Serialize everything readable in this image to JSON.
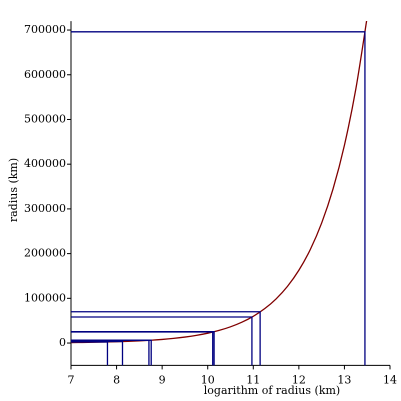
{
  "chart_data": {
    "type": "line",
    "xlabel": "logarithm of radius (km)",
    "ylabel": "radius (km)",
    "xlim": [
      7,
      14
    ],
    "ylim": [
      -50000,
      720000
    ],
    "xticks": [
      7,
      8,
      9,
      10,
      11,
      12,
      13,
      14
    ],
    "yticks": [
      0,
      100000,
      200000,
      300000,
      400000,
      500000,
      600000,
      700000
    ],
    "series": [
      {
        "color": "#800000",
        "x": [
          7,
          7.25,
          7.5,
          7.75,
          8,
          8.25,
          8.5,
          8.75,
          9,
          9.25,
          9.5,
          9.75,
          10,
          10.25,
          10.5,
          10.75,
          11,
          11.25,
          11.5,
          11.75,
          12,
          12.25,
          12.5,
          12.75,
          13,
          13.25,
          13.5
        ],
        "values": [
          1097,
          1408,
          1808,
          2322,
          2981,
          3827,
          4915,
          6311,
          8103,
          10405,
          13360,
          17154,
          22026,
          28283,
          36316,
          46630,
          59874,
          76880,
          98716,
          126753,
          162755,
          208981,
          268337,
          344551,
          442413,
          568070,
          729416
        ]
      },
      {
        "color": "#000080",
        "style": "drop-lines",
        "x": [
          7.8,
          8.13,
          8.71,
          8.76,
          10.11,
          10.14,
          10.97,
          11.15,
          13.45
        ],
        "values": [
          2440,
          3390,
          6052,
          6371,
          24622,
          25362,
          58232,
          69911,
          696000
        ]
      }
    ]
  }
}
